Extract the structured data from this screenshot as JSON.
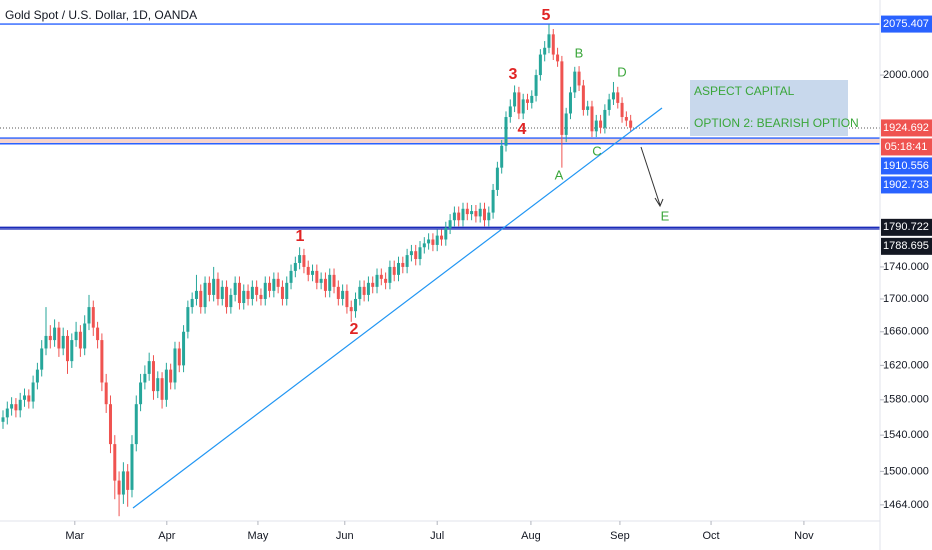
{
  "chart_data": {
    "type": "candlestick",
    "title": "Gold Spot / U.S. Dollar, 1D, OANDA",
    "log_scale": true,
    "up_color": "#26a69a",
    "down_color": "#ef5350",
    "ylim": [
      1448,
      2112
    ],
    "xlim": [
      -0.7,
      204
    ],
    "yticks": [
      {
        "value": 2000,
        "label": "2000.000"
      },
      {
        "value": 1740,
        "label": "1740.000"
      },
      {
        "value": 1700,
        "label": "1700.000"
      },
      {
        "value": 1660,
        "label": "1660.000"
      },
      {
        "value": 1620,
        "label": "1620.000"
      },
      {
        "value": 1580,
        "label": "1580.000"
      },
      {
        "value": 1540,
        "label": "1540.000"
      },
      {
        "value": 1500,
        "label": "1500.000"
      },
      {
        "value": 1464,
        "label": "1464.000"
      }
    ],
    "xticks": [
      {
        "value": 16.7,
        "label": "Mar"
      },
      {
        "value": 38.1,
        "label": "Apr"
      },
      {
        "value": 59.3,
        "label": "May"
      },
      {
        "value": 79.5,
        "label": "Jun"
      },
      {
        "value": 101,
        "label": "Jul"
      },
      {
        "value": 122.8,
        "label": "Aug"
      },
      {
        "value": 143.5,
        "label": "Sep"
      },
      {
        "value": 164.7,
        "label": "Oct"
      },
      {
        "value": 186.3,
        "label": "Nov"
      }
    ],
    "levels": [
      {
        "value": 2075.407,
        "color": "#2962ff",
        "line": "#2962ff"
      },
      {
        "value": 1924.692,
        "color": "#ef5350",
        "line": "#555",
        "dash": true,
        "countdown": "05:18:41"
      },
      {
        "value": 1910.556,
        "color": "#2962ff",
        "line": "#2962ff"
      },
      {
        "value": 1902.733,
        "color": "#2962ff",
        "line": "#2962ff"
      },
      {
        "value": 1790.722,
        "color": "#131722",
        "line": "#1a2ab8"
      },
      {
        "value": 1788.695,
        "color": "#131722",
        "line": "#1a2ab8"
      }
    ],
    "wave_labels": [
      "1",
      "2",
      "3",
      "4",
      "5"
    ],
    "correction_labels": [
      "A",
      "B",
      "C",
      "D",
      "E"
    ],
    "note": [
      "ASPECT CAPITAL",
      "OPTION 2: BEARISH OPTION"
    ],
    "candles": [
      [
        1555,
        1568,
        1547,
        1560
      ],
      [
        1560,
        1578,
        1552,
        1570
      ],
      [
        1570,
        1583,
        1562,
        1575
      ],
      [
        1575,
        1582,
        1560,
        1568
      ],
      [
        1568,
        1588,
        1560,
        1580
      ],
      [
        1580,
        1593,
        1572,
        1585
      ],
      [
        1585,
        1592,
        1570,
        1578
      ],
      [
        1578,
        1608,
        1570,
        1600
      ],
      [
        1600,
        1623,
        1592,
        1615
      ],
      [
        1615,
        1650,
        1607,
        1640
      ],
      [
        1640,
        1690,
        1632,
        1655
      ],
      [
        1655,
        1668,
        1640,
        1650
      ],
      [
        1650,
        1675,
        1642,
        1665
      ],
      [
        1665,
        1672,
        1630,
        1640
      ],
      [
        1640,
        1665,
        1632,
        1655
      ],
      [
        1655,
        1662,
        1610,
        1625
      ],
      [
        1625,
        1658,
        1617,
        1650
      ],
      [
        1650,
        1672,
        1642,
        1660
      ],
      [
        1660,
        1668,
        1630,
        1640
      ],
      [
        1640,
        1680,
        1632,
        1670
      ],
      [
        1670,
        1705,
        1662,
        1690
      ],
      [
        1690,
        1698,
        1655,
        1665
      ],
      [
        1665,
        1672,
        1640,
        1650
      ],
      [
        1650,
        1658,
        1590,
        1600
      ],
      [
        1600,
        1610,
        1565,
        1575
      ],
      [
        1575,
        1585,
        1520,
        1530
      ],
      [
        1530,
        1540,
        1470,
        1490
      ],
      [
        1490,
        1500,
        1452,
        1475
      ],
      [
        1475,
        1510,
        1465,
        1500
      ],
      [
        1500,
        1508,
        1462,
        1480
      ],
      [
        1480,
        1540,
        1472,
        1530
      ],
      [
        1530,
        1585,
        1522,
        1575
      ],
      [
        1575,
        1610,
        1567,
        1600
      ],
      [
        1600,
        1620,
        1592,
        1610
      ],
      [
        1610,
        1635,
        1602,
        1625
      ],
      [
        1625,
        1632,
        1580,
        1590
      ],
      [
        1590,
        1613,
        1582,
        1605
      ],
      [
        1605,
        1612,
        1570,
        1580
      ],
      [
        1580,
        1623,
        1572,
        1615
      ],
      [
        1615,
        1622,
        1592,
        1600
      ],
      [
        1600,
        1648,
        1592,
        1640
      ],
      [
        1640,
        1648,
        1612,
        1620
      ],
      [
        1620,
        1668,
        1612,
        1660
      ],
      [
        1660,
        1698,
        1652,
        1690
      ],
      [
        1690,
        1708,
        1682,
        1700
      ],
      [
        1700,
        1730,
        1692,
        1710
      ],
      [
        1710,
        1718,
        1682,
        1690
      ],
      [
        1690,
        1728,
        1682,
        1720
      ],
      [
        1720,
        1728,
        1697,
        1705
      ],
      [
        1705,
        1740,
        1697,
        1725
      ],
      [
        1725,
        1733,
        1692,
        1700
      ],
      [
        1700,
        1723,
        1692,
        1715
      ],
      [
        1715,
        1723,
        1682,
        1690
      ],
      [
        1690,
        1713,
        1682,
        1705
      ],
      [
        1705,
        1728,
        1697,
        1720
      ],
      [
        1720,
        1728,
        1687,
        1695
      ],
      [
        1695,
        1718,
        1687,
        1710
      ],
      [
        1710,
        1718,
        1692,
        1700
      ],
      [
        1700,
        1723,
        1692,
        1715
      ],
      [
        1715,
        1723,
        1697,
        1705
      ],
      [
        1705,
        1713,
        1692,
        1700
      ],
      [
        1700,
        1728,
        1692,
        1720
      ],
      [
        1720,
        1728,
        1702,
        1710
      ],
      [
        1710,
        1733,
        1702,
        1725
      ],
      [
        1725,
        1733,
        1707,
        1715
      ],
      [
        1715,
        1723,
        1692,
        1700
      ],
      [
        1700,
        1728,
        1692,
        1720
      ],
      [
        1720,
        1743,
        1712,
        1735
      ],
      [
        1735,
        1753,
        1727,
        1745
      ],
      [
        1745,
        1765,
        1737,
        1755
      ],
      [
        1755,
        1763,
        1732,
        1740
      ],
      [
        1740,
        1748,
        1722,
        1730
      ],
      [
        1730,
        1743,
        1722,
        1735
      ],
      [
        1735,
        1743,
        1712,
        1720
      ],
      [
        1720,
        1733,
        1712,
        1725
      ],
      [
        1725,
        1733,
        1702,
        1710
      ],
      [
        1710,
        1738,
        1702,
        1730
      ],
      [
        1730,
        1738,
        1707,
        1715
      ],
      [
        1715,
        1723,
        1692,
        1700
      ],
      [
        1700,
        1718,
        1692,
        1710
      ],
      [
        1710,
        1718,
        1682,
        1690
      ],
      [
        1690,
        1698,
        1672,
        1685
      ],
      [
        1685,
        1708,
        1677,
        1700
      ],
      [
        1700,
        1723,
        1692,
        1715
      ],
      [
        1715,
        1723,
        1697,
        1705
      ],
      [
        1705,
        1728,
        1697,
        1720
      ],
      [
        1720,
        1728,
        1707,
        1715
      ],
      [
        1715,
        1738,
        1707,
        1730
      ],
      [
        1730,
        1738,
        1717,
        1725
      ],
      [
        1725,
        1733,
        1712,
        1720
      ],
      [
        1720,
        1748,
        1712,
        1740
      ],
      [
        1740,
        1748,
        1722,
        1730
      ],
      [
        1730,
        1753,
        1722,
        1745
      ],
      [
        1745,
        1753,
        1732,
        1740
      ],
      [
        1740,
        1763,
        1732,
        1755
      ],
      [
        1755,
        1768,
        1747,
        1760
      ],
      [
        1760,
        1768,
        1742,
        1750
      ],
      [
        1750,
        1773,
        1742,
        1765
      ],
      [
        1765,
        1778,
        1757,
        1770
      ],
      [
        1770,
        1783,
        1762,
        1775
      ],
      [
        1775,
        1783,
        1760,
        1768
      ],
      [
        1768,
        1788,
        1760,
        1780
      ],
      [
        1780,
        1788,
        1767,
        1775
      ],
      [
        1775,
        1798,
        1767,
        1790
      ],
      [
        1790,
        1808,
        1782,
        1800
      ],
      [
        1800,
        1818,
        1792,
        1810
      ],
      [
        1810,
        1818,
        1792,
        1800
      ],
      [
        1800,
        1823,
        1792,
        1815
      ],
      [
        1815,
        1823,
        1800,
        1808
      ],
      [
        1808,
        1820,
        1800,
        1812
      ],
      [
        1812,
        1820,
        1797,
        1805
      ],
      [
        1805,
        1823,
        1797,
        1815
      ],
      [
        1815,
        1823,
        1792,
        1800
      ],
      [
        1800,
        1818,
        1792,
        1810
      ],
      [
        1810,
        1848,
        1802,
        1840
      ],
      [
        1840,
        1878,
        1832,
        1870
      ],
      [
        1870,
        1908,
        1862,
        1900
      ],
      [
        1900,
        1948,
        1892,
        1940
      ],
      [
        1940,
        1965,
        1932,
        1955
      ],
      [
        1955,
        1985,
        1947,
        1975
      ],
      [
        1975,
        1983,
        1937,
        1945
      ],
      [
        1945,
        1973,
        1937,
        1965
      ],
      [
        1965,
        1973,
        1950,
        1960
      ],
      [
        1960,
        1978,
        1952,
        1970
      ],
      [
        1970,
        2008,
        1962,
        2000
      ],
      [
        2000,
        2038,
        1992,
        2030
      ],
      [
        2030,
        2050,
        2020,
        2040
      ],
      [
        2040,
        2075,
        2032,
        2060
      ],
      [
        2060,
        2068,
        2022,
        2030
      ],
      [
        2030,
        2040,
        2012,
        2020
      ],
      [
        2020,
        2028,
        1870,
        1915
      ],
      [
        1915,
        1953,
        1905,
        1945
      ],
      [
        1945,
        1983,
        1937,
        1975
      ],
      [
        1975,
        2012,
        1967,
        2005
      ],
      [
        2005,
        2013,
        1977,
        1985
      ],
      [
        1985,
        1993,
        1942,
        1950
      ],
      [
        1950,
        1963,
        1942,
        1955
      ],
      [
        1955,
        1963,
        1912,
        1920
      ],
      [
        1920,
        1943,
        1912,
        1935
      ],
      [
        1935,
        1943,
        1917,
        1925
      ],
      [
        1925,
        1958,
        1917,
        1950
      ],
      [
        1950,
        1973,
        1942,
        1965
      ],
      [
        1965,
        1990,
        1957,
        1975
      ],
      [
        1975,
        1983,
        1952,
        1960
      ],
      [
        1960,
        1968,
        1932,
        1940
      ],
      [
        1940,
        1948,
        1927,
        1935
      ],
      [
        1935,
        1943,
        1920,
        1925
      ]
    ]
  }
}
